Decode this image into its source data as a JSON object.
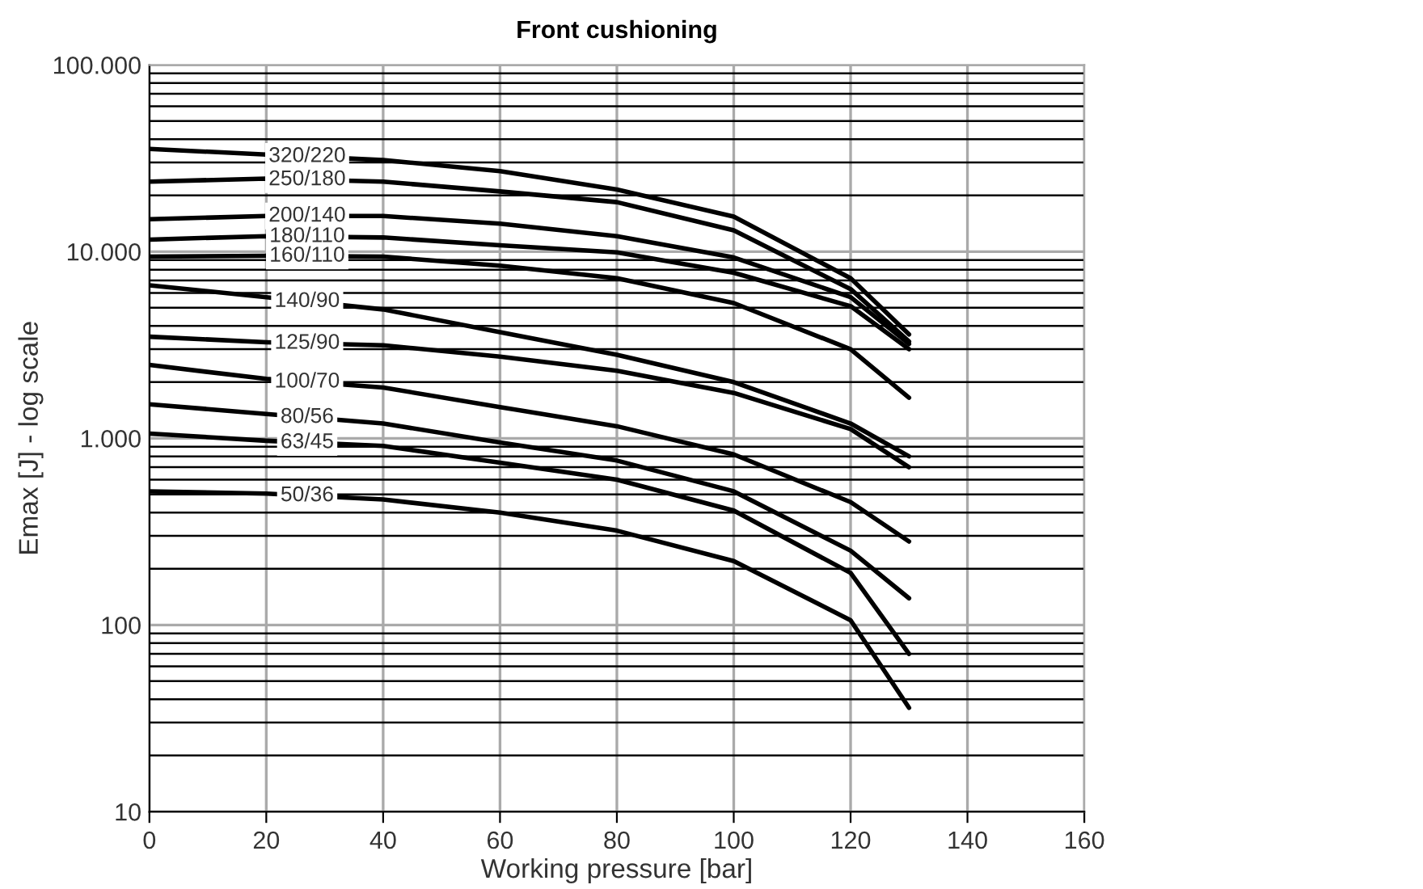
{
  "chart_data": {
    "type": "line",
    "title": "Front cushioning",
    "xlabel": "Working pressure [bar]",
    "ylabel": "Emax [J] - log scale",
    "x": [
      0,
      20,
      40,
      60,
      80,
      100,
      120,
      130
    ],
    "series": [
      {
        "name": "320/220",
        "color": "#000000",
        "values": [
          35500,
          33100,
          30900,
          27000,
          21500,
          15400,
          7200,
          3600
        ]
      },
      {
        "name": "250/180",
        "color": "#000000",
        "values": [
          23700,
          24600,
          23700,
          21000,
          18400,
          13000,
          6300,
          3300
        ]
      },
      {
        "name": "200/140",
        "color": "#000000",
        "values": [
          14900,
          15500,
          15500,
          14100,
          12100,
          9300,
          5700,
          3200
        ]
      },
      {
        "name": "180/110",
        "color": "#000000",
        "values": [
          11600,
          12100,
          11900,
          10800,
          9900,
          7700,
          5100,
          3000
        ]
      },
      {
        "name": "160/110",
        "color": "#000000",
        "values": [
          9400,
          9500,
          9400,
          8400,
          7200,
          5300,
          3000,
          1650
        ]
      },
      {
        "name": "140/90",
        "color": "#000000",
        "values": [
          6600,
          5700,
          4900,
          3700,
          2800,
          2000,
          1200,
          800
        ]
      },
      {
        "name": "125/90",
        "color": "#000000",
        "values": [
          3500,
          3270,
          3150,
          2740,
          2300,
          1750,
          1120,
          700
        ]
      },
      {
        "name": "100/70",
        "color": "#000000",
        "values": [
          2470,
          2080,
          1870,
          1470,
          1160,
          820,
          455,
          280
        ]
      },
      {
        "name": "80/56",
        "color": "#000000",
        "values": [
          1520,
          1350,
          1200,
          950,
          760,
          520,
          250,
          139
        ]
      },
      {
        "name": "63/45",
        "color": "#000000",
        "values": [
          1060,
          970,
          910,
          740,
          600,
          410,
          190,
          70
        ]
      },
      {
        "name": "50/36",
        "color": "#000000",
        "values": [
          520,
          505,
          470,
          400,
          320,
          220,
          106,
          36
        ]
      }
    ],
    "log": "y",
    "xlim": [
      0,
      160
    ],
    "xticks": [
      0,
      20,
      40,
      60,
      80,
      100,
      120,
      140,
      160
    ],
    "ylim": [
      10,
      100000
    ],
    "yticks": [
      10,
      100,
      {
        "value": 1000,
        "label": "1.000"
      },
      {
        "value": 10000,
        "label": "10.000"
      },
      {
        "value": 100000,
        "label": "100.000"
      }
    ],
    "grid": true,
    "legend": false,
    "marker": "none",
    "line_style": "solid"
  }
}
